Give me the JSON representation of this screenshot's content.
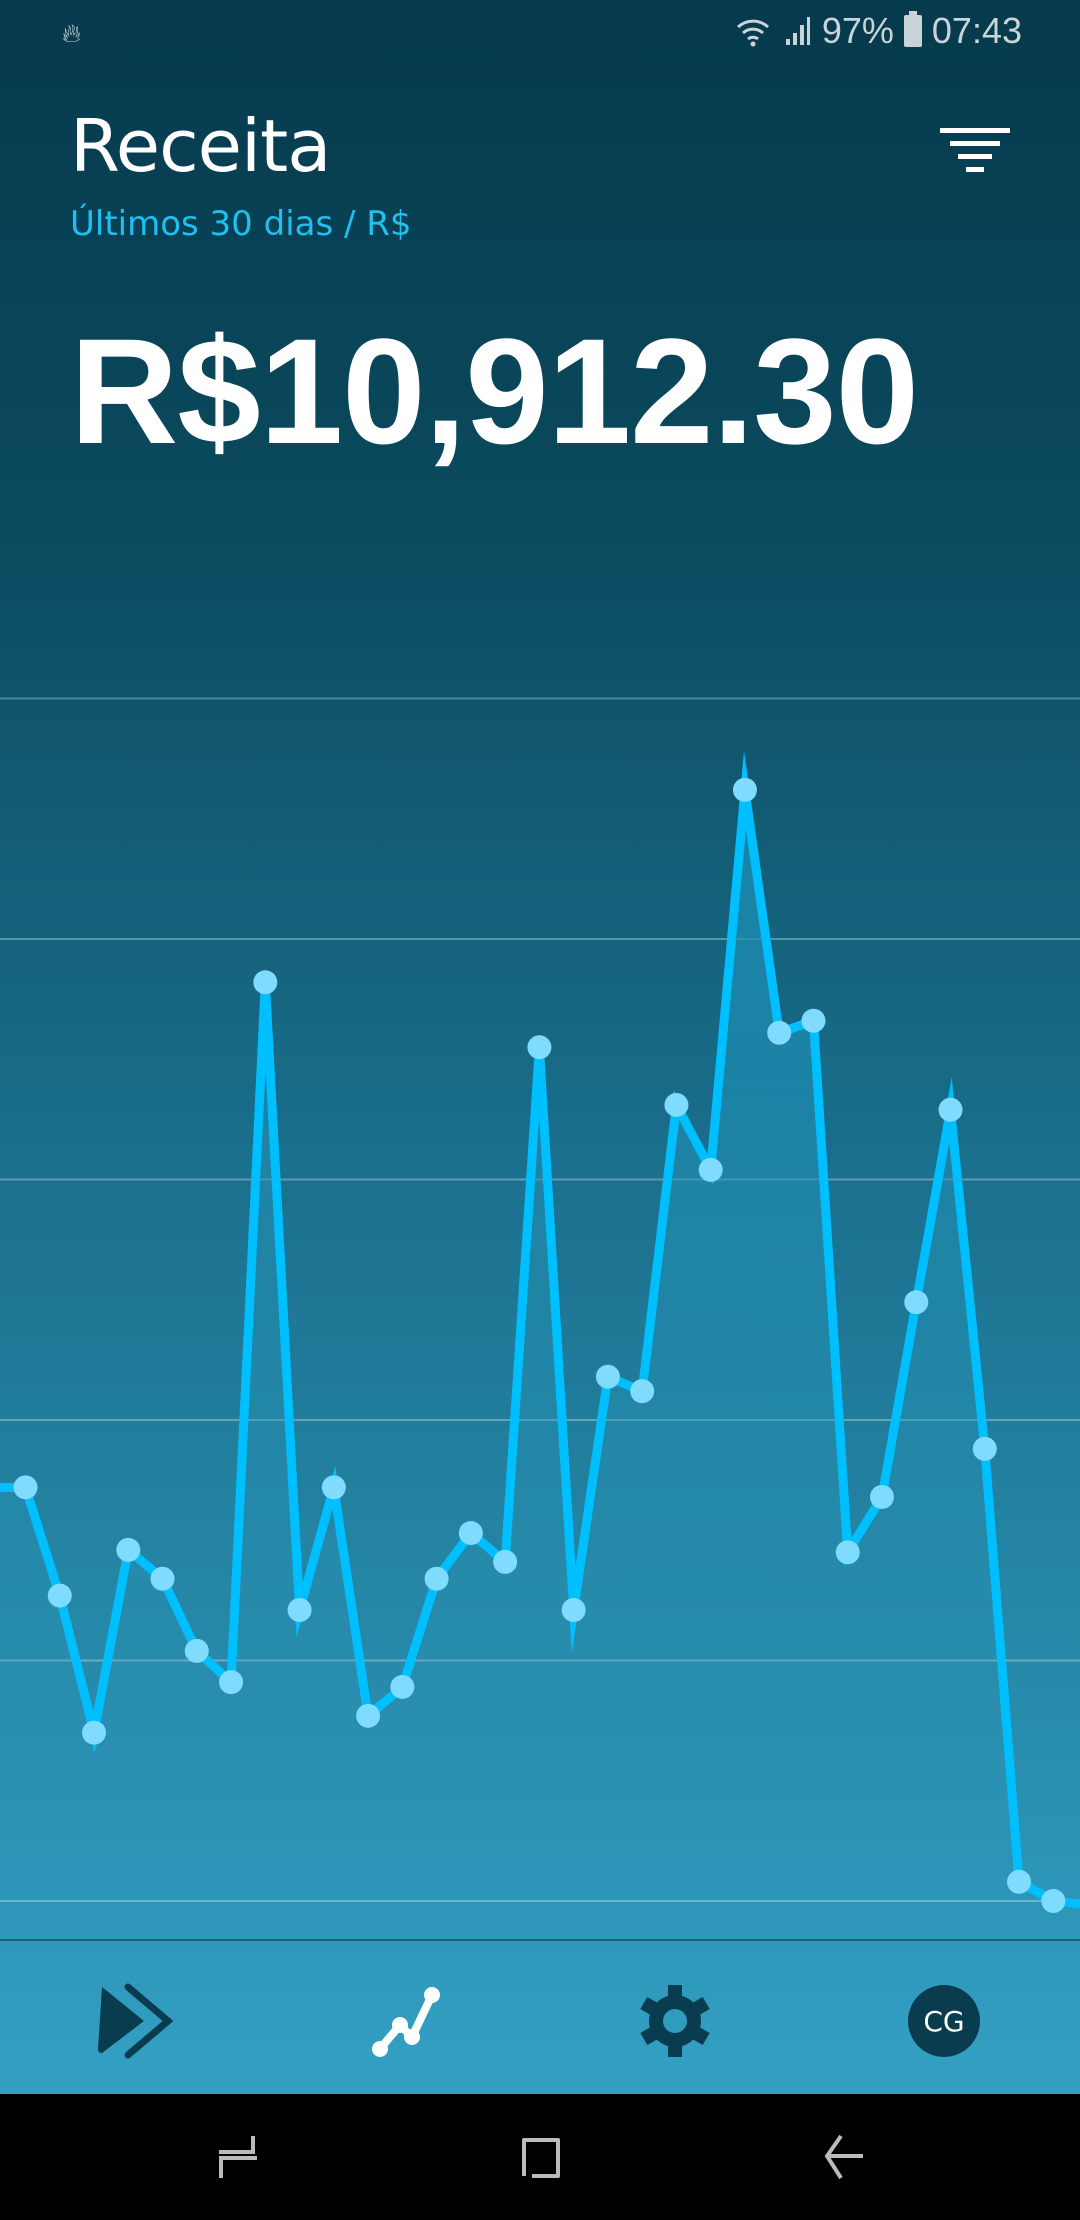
{
  "status_bar": {
    "battery": "97%",
    "time": "07:43",
    "left_icon": "flame-icon"
  },
  "header": {
    "title": "Receita",
    "subtitle": "Últimos 30 dias / R$",
    "filter_icon": "filter-icon"
  },
  "total": "R$10,912.30",
  "colors": {
    "line": "#00bfff",
    "point": "#7fdcff",
    "accent": "#1fbfef",
    "dark": "#0a3c4f"
  },
  "chart_data": {
    "type": "line",
    "title": "",
    "xlabel": "",
    "ylabel": "",
    "grid": true,
    "gridlines": 6,
    "ylim": [
      0,
      5
    ],
    "x": [
      1,
      2,
      3,
      4,
      5,
      6,
      7,
      8,
      9,
      10,
      11,
      12,
      13,
      14,
      15,
      16,
      17,
      18,
      19,
      20,
      21,
      22,
      23,
      24,
      25,
      26,
      27,
      28,
      29,
      30,
      31
    ],
    "values": [
      1.72,
      1.27,
      0.7,
      1.46,
      1.34,
      1.04,
      0.91,
      3.82,
      1.21,
      1.72,
      0.77,
      0.89,
      1.34,
      1.53,
      1.41,
      3.55,
      1.21,
      2.18,
      2.12,
      3.31,
      3.04,
      4.62,
      3.61,
      3.66,
      1.45,
      1.68,
      2.49,
      3.29,
      1.88,
      0.08,
      0.0
    ]
  },
  "bottom_nav": {
    "items": [
      {
        "icon": "forward-icon"
      },
      {
        "icon": "chart-line-icon",
        "active": true
      },
      {
        "icon": "gear-icon"
      },
      {
        "avatar": "CG"
      }
    ]
  },
  "system_nav": {
    "items": [
      "recents-icon",
      "home-icon",
      "back-icon"
    ]
  }
}
